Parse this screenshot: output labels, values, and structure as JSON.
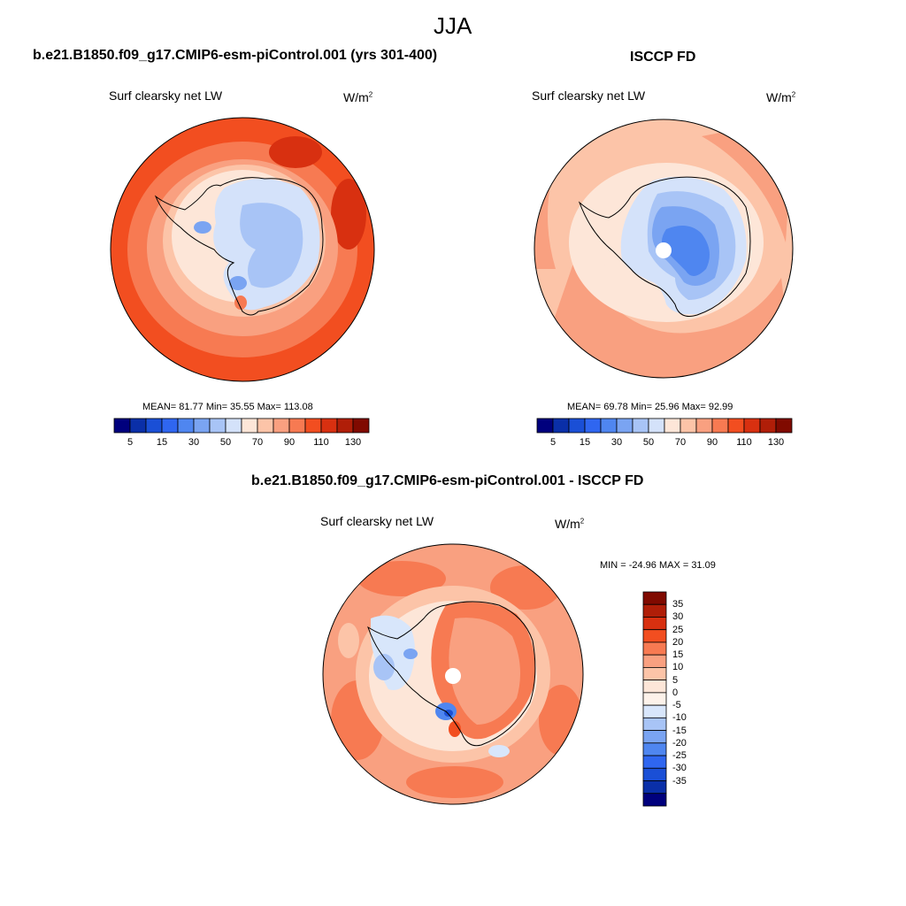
{
  "page": {
    "title": "JJA"
  },
  "colors": {
    "blue_red_ramp": [
      "#00007d",
      "#0a2fa8",
      "#1a4fd6",
      "#2f66f0",
      "#4f86f0",
      "#7aa4f2",
      "#a8c4f6",
      "#d4e2fa",
      "#fde6d8",
      "#fcc4a8",
      "#f9a080",
      "#f77a52",
      "#f24e20",
      "#d83010",
      "#b01e08",
      "#800a00"
    ],
    "diff_ramp": [
      "#00007d",
      "#0a2fa8",
      "#1a4fd6",
      "#2f66f0",
      "#4f86f0",
      "#7aa4f2",
      "#a8c4f6",
      "#d8e6fb",
      "#fdf2ea",
      "#fde6d8",
      "#fcc4a8",
      "#f9a080",
      "#f77a52",
      "#f24e20",
      "#d83010",
      "#b01e08",
      "#800a00"
    ]
  },
  "panels": {
    "model": {
      "heading": "b.e21.B1850.f09_g17.CMIP6-esm-piControl.001 (yrs 301-400)",
      "variable": "Surf clearsky net LW",
      "units": "W/m",
      "units_sup": "2",
      "stats": "MEAN=  81.77  Min=  35.55  Max= 113.08",
      "colorbar_ticks": [
        "5",
        "15",
        "30",
        "50",
        "70",
        "90",
        "110",
        "130"
      ]
    },
    "obs": {
      "heading": "ISCCP FD",
      "variable": "Surf clearsky net LW",
      "units": "W/m",
      "units_sup": "2",
      "stats": "MEAN=  69.78  Min=  25.96  Max=  92.99",
      "colorbar_ticks": [
        "5",
        "15",
        "30",
        "50",
        "70",
        "90",
        "110",
        "130"
      ]
    },
    "diff": {
      "heading": "b.e21.B1850.f09_g17.CMIP6-esm-piControl.001 - ISCCP FD",
      "variable": "Surf clearsky net LW",
      "units": "W/m",
      "units_sup": "2",
      "stats": "MIN = -24.96 MAX =  31.09",
      "colorbar_ticks": [
        "35",
        "30",
        "25",
        "20",
        "15",
        "10",
        "5",
        "0",
        "-5",
        "-10",
        "-15",
        "-20",
        "-25",
        "-30",
        "-35"
      ]
    }
  }
}
